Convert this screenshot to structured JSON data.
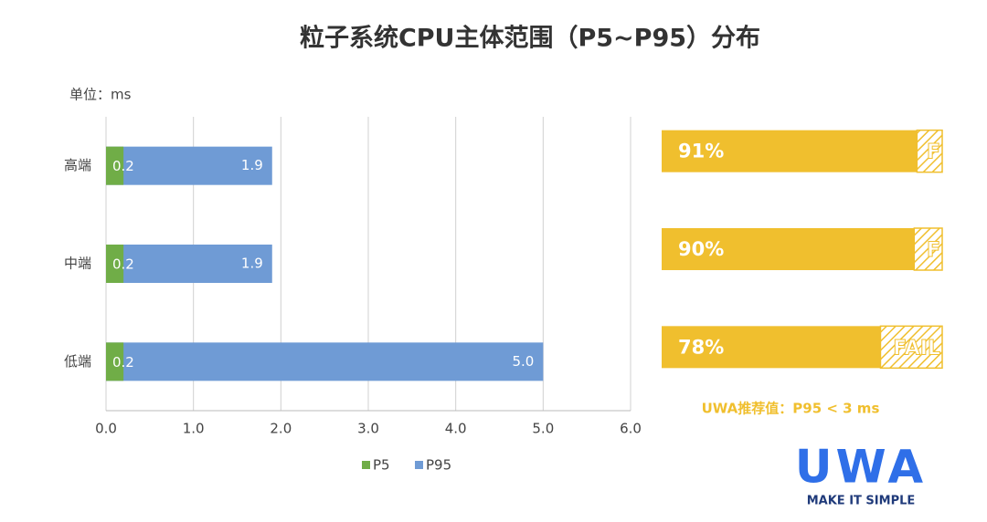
{
  "chart_data": {
    "type": "bar",
    "orientation": "horizontal",
    "overlap": true,
    "title": "粒子系统CPU主体范围（P5~P95）分布",
    "unit_label": "单位：ms",
    "categories": [
      "高端",
      "中端",
      "低端"
    ],
    "series": [
      {
        "name": "P5",
        "color": "#70ad47",
        "values": [
          0.2,
          0.2,
          0.2
        ]
      },
      {
        "name": "P95",
        "color": "#6f9bd5",
        "values": [
          1.9,
          1.9,
          5.0
        ],
        "value_labels": [
          "1.9",
          "1.9",
          "5.0"
        ]
      }
    ],
    "xlim": [
      0,
      6
    ],
    "xticks": [
      {
        "value": 0,
        "label": "0.0"
      },
      {
        "value": 1,
        "label": "1.0"
      },
      {
        "value": 2,
        "label": "2.0"
      },
      {
        "value": 3,
        "label": "3.0"
      },
      {
        "value": 4,
        "label": "4.0"
      },
      {
        "value": 5,
        "label": "5.0"
      },
      {
        "value": 6,
        "label": "6.0"
      }
    ],
    "grid": true,
    "legend": "bottom"
  },
  "pass_rates": {
    "values": [
      91,
      90,
      78
    ],
    "value_labels": [
      "91%",
      "90%",
      "78%"
    ],
    "fail_labels": [
      "F",
      "F",
      "FAIL"
    ],
    "color": "#f0bf2e"
  },
  "note": "UWA推荐值：P95 < 3 ms",
  "logo": {
    "name": "UWA",
    "slogan": "MAKE IT SIMPLE"
  }
}
